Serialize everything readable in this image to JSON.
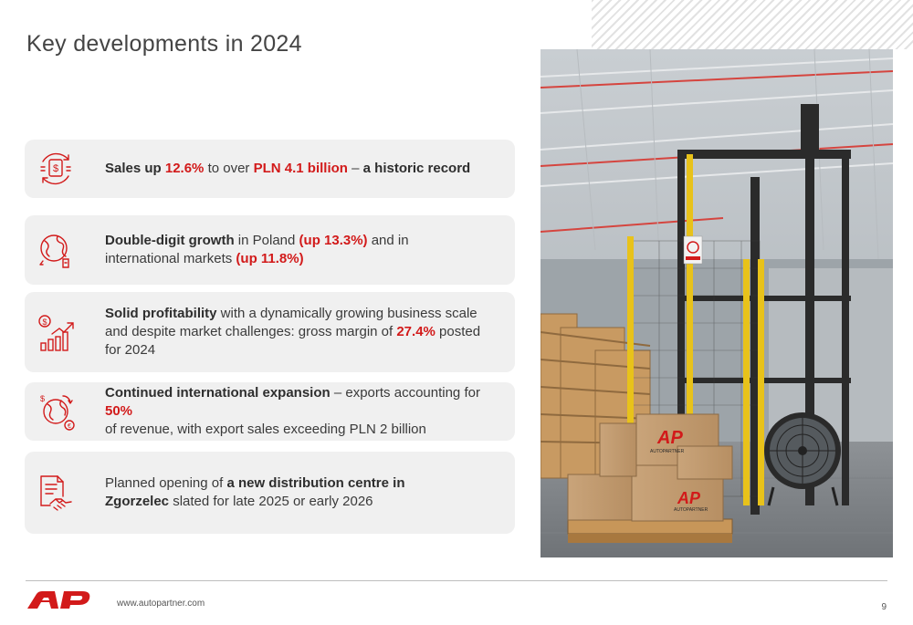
{
  "title": "Key developments in 2024",
  "accent_color": "#d21a1a",
  "cards": [
    {
      "icon": "money-cycle-icon",
      "parts": [
        {
          "t": "Sales up ",
          "s": "b"
        },
        {
          "t": "12.6%",
          "s": "r"
        },
        {
          "t": " to over ",
          "s": "n"
        },
        {
          "t": "PLN 4.1 billion",
          "s": "r"
        },
        {
          "t": " – ",
          "s": "n"
        },
        {
          "t": "a historic record",
          "s": "b"
        }
      ]
    },
    {
      "icon": "globe-growth-icon",
      "parts": [
        {
          "t": "Double-digit growth",
          "s": "b"
        },
        {
          "t": " in Poland ",
          "s": "n"
        },
        {
          "t": "(up 13.3%)",
          "s": "r"
        },
        {
          "t": " and in",
          "s": "n"
        },
        {
          "t": "BR",
          "s": "br"
        },
        {
          "t": "international markets ",
          "s": "n"
        },
        {
          "t": "(up 11.8%)",
          "s": "r"
        }
      ]
    },
    {
      "icon": "profit-chart-icon",
      "parts": [
        {
          "t": "Solid profitability",
          "s": "b"
        },
        {
          "t": " with a dynamically growing business scale",
          "s": "n"
        },
        {
          "t": "BR",
          "s": "br"
        },
        {
          "t": "and despite market challenges: gross margin of ",
          "s": "n"
        },
        {
          "t": "27.4%",
          "s": "r"
        },
        {
          "t": " posted",
          "s": "n"
        },
        {
          "t": "BR",
          "s": "br"
        },
        {
          "t": "for 2024",
          "s": "n"
        }
      ]
    },
    {
      "icon": "global-exchange-icon",
      "parts": [
        {
          "t": "Continued international expansion",
          "s": "b"
        },
        {
          "t": " – exports accounting for ",
          "s": "n"
        },
        {
          "t": "50%",
          "s": "r"
        },
        {
          "t": "BR",
          "s": "br"
        },
        {
          "t": "of revenue, with export sales exceeding PLN 2 billion",
          "s": "n"
        }
      ]
    },
    {
      "icon": "contract-handshake-icon",
      "parts": [
        {
          "t": "Planned opening of ",
          "s": "n"
        },
        {
          "t": "a new distribution centre in",
          "s": "b"
        },
        {
          "t": "BR",
          "s": "br"
        },
        {
          "t": "Zgorzelec",
          "s": "b"
        },
        {
          "t": " slated for late 2025 or early 2026",
          "s": "n"
        }
      ]
    }
  ],
  "photo": {
    "name": "warehouse-pallet-wrapper-photo",
    "box_brand": "AP",
    "box_text": "AUTOPARTNER"
  },
  "footer": {
    "url": "www.autopartner.com",
    "page": "9"
  }
}
